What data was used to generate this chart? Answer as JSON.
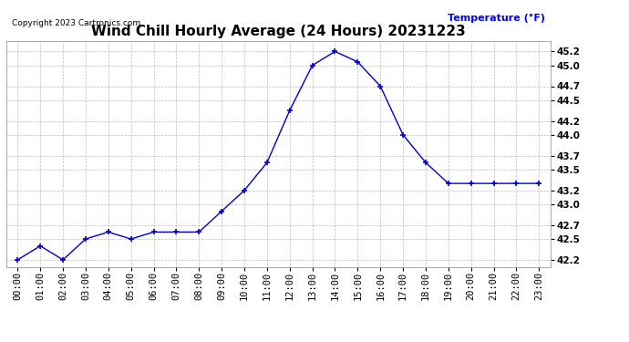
{
  "title": "Wind Chill Hourly Average (24 Hours) 20231223",
  "copyright_text": "Copyright 2023 Cartronics.com",
  "ylabel_annotation": "Temperature (°F)",
  "x_labels": [
    "00:00",
    "01:00",
    "02:00",
    "03:00",
    "04:00",
    "05:00",
    "06:00",
    "07:00",
    "08:00",
    "09:00",
    "10:00",
    "11:00",
    "12:00",
    "13:00",
    "14:00",
    "15:00",
    "16:00",
    "17:00",
    "18:00",
    "19:00",
    "20:00",
    "21:00",
    "22:00",
    "23:00"
  ],
  "y_values": [
    42.2,
    42.4,
    42.2,
    42.5,
    42.6,
    42.5,
    42.6,
    42.6,
    42.6,
    42.9,
    43.2,
    43.6,
    44.35,
    45.0,
    45.2,
    45.05,
    44.7,
    44.0,
    43.6,
    43.3,
    43.3,
    43.3,
    43.3,
    43.3
  ],
  "ylim_min": 42.1,
  "ylim_max": 45.35,
  "yticks": [
    42.2,
    42.5,
    42.7,
    43.0,
    43.2,
    43.5,
    43.7,
    44.0,
    44.2,
    44.5,
    44.7,
    45.0,
    45.2
  ],
  "line_color": "#0000cc",
  "marker": "+",
  "marker_color": "#0000cc",
  "bg_color": "#ffffff",
  "grid_color": "#aaaaaa",
  "title_color": "#000000",
  "ylabel_color": "#0000ff",
  "copyright_color": "#000000",
  "title_fontsize": 11,
  "label_fontsize": 8,
  "tick_fontsize": 7.5,
  "copyright_fontsize": 6.5,
  "ytick_fontsize": 7.5
}
